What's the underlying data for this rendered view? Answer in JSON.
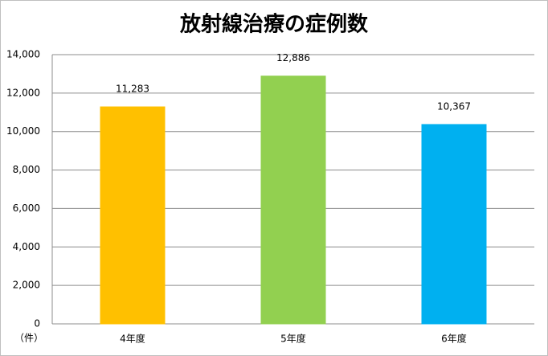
{
  "chart_data": {
    "type": "bar",
    "title": "放射線治療の症例数",
    "categories": [
      "4年度",
      "5年度",
      "6年度"
    ],
    "values": [
      11283,
      12886,
      10367
    ],
    "value_labels": [
      "11,283",
      "12,886",
      "10,367"
    ],
    "colors": [
      "#ffc000",
      "#92d050",
      "#00b0f0"
    ],
    "ylim": [
      0,
      14000
    ],
    "yticks": [
      0,
      {
        "value": 2000,
        "label": "2,000"
      },
      {
        "value": 4000,
        "label": "4,000"
      },
      {
        "value": 6000,
        "label": "6,000"
      },
      {
        "value": 8000,
        "label": "8,000"
      },
      {
        "value": 10000,
        "label": "10,000"
      },
      {
        "value": 12000,
        "label": "12,000"
      },
      {
        "value": 14000,
        "label": "14,000"
      }
    ],
    "y_unit": "（件）",
    "grid": true
  }
}
